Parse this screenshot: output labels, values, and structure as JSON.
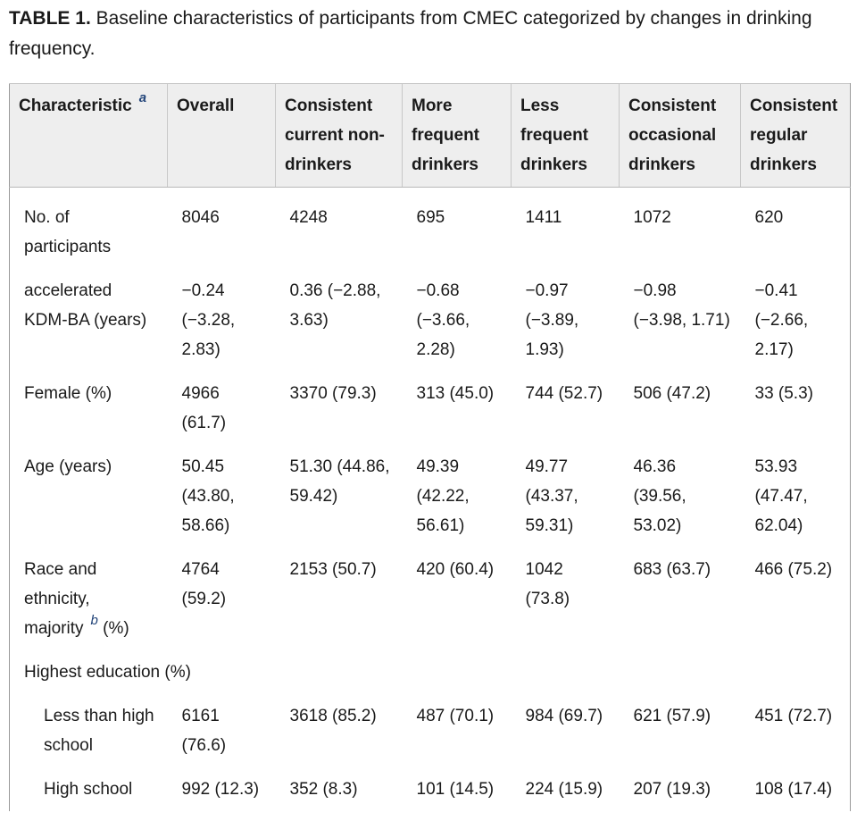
{
  "caption": {
    "label": "TABLE 1.",
    "text": "Baseline characteristics of participants from CMEC categorized by changes in drinking frequency."
  },
  "table": {
    "header": [
      {
        "text": "Characteristic",
        "sup": "a"
      },
      "Overall",
      "Consistent current non-drinkers",
      "More frequent drinkers",
      "Less frequent drinkers",
      "Consistent occasional drinkers",
      "Consistent regular drinkers"
    ],
    "rows": [
      {
        "label": "No. of participants",
        "values": [
          "8046",
          "4248",
          "695",
          "1411",
          "1072",
          "620"
        ]
      },
      {
        "label": "accelerated KDM-BA (years)",
        "values": [
          "−0.24 (−3.28, 2.83)",
          "0.36 (−2.88, 3.63)",
          "−0.68 (−3.66, 2.28)",
          "−0.97 (−3.89, 1.93)",
          "−0.98 (−3.98, 1.71)",
          "−0.41 (−2.66, 2.17)"
        ]
      },
      {
        "label": "Female (%)",
        "values": [
          "4966 (61.7)",
          "3370 (79.3)",
          "313 (45.0)",
          "744 (52.7)",
          "506 (47.2)",
          "33 (5.3)"
        ]
      },
      {
        "label": "Age (years)",
        "values": [
          "50.45 (43.80, 58.66)",
          "51.30 (44.86, 59.42)",
          "49.39 (42.22, 56.61)",
          "49.77 (43.37, 59.31)",
          "46.36 (39.56, 53.02)",
          "53.93 (47.47, 62.04)"
        ]
      },
      {
        "label": {
          "text": "Race and ethnicity, majority",
          "sup": "b",
          "after": "(%)"
        },
        "values": [
          "4764 (59.2)",
          "2153 (50.7)",
          "420 (60.4)",
          "1042 (73.8)",
          "683 (63.7)",
          "466 (75.2)"
        ]
      },
      {
        "label": "Highest education (%)",
        "subrows": [
          {
            "label": "Less than high school",
            "values": [
              "6161 (76.6)",
              "3618 (85.2)",
              "487 (70.1)",
              "984 (69.7)",
              "621 (57.9)",
              "451 (72.7)"
            ]
          },
          {
            "label": "High school",
            "values": [
              "992 (12.3)",
              "352 (8.3)",
              "101 (14.5)",
              "224 (15.9)",
              "207 (19.3)",
              "108 (17.4)"
            ]
          }
        ]
      }
    ]
  }
}
